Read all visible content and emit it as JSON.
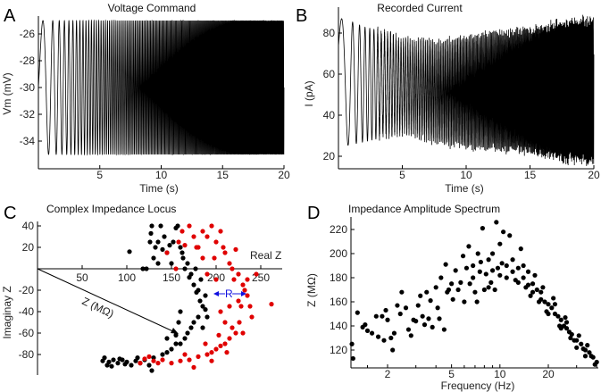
{
  "panels": {
    "A": "A",
    "B": "B",
    "C": "C",
    "D": "D"
  },
  "chart_data": [
    {
      "panel": "A",
      "type": "line",
      "title": "Voltage Command",
      "xlabel": "Time (s)",
      "ylabel": "Vm (mV)",
      "xlim": [
        0,
        20
      ],
      "ylim": [
        -36.1,
        -24.9
      ],
      "xticks": [
        5,
        10,
        15,
        20
      ],
      "yticks": [
        -26,
        -28,
        -30,
        -32,
        -34
      ],
      "waveform": {
        "kind": "chirp",
        "min": -35,
        "max": -25,
        "start_freq_hz": 0.5,
        "end_freq_hz": 20
      },
      "color": "#000000"
    },
    {
      "panel": "B",
      "type": "line",
      "title": "Recorded Current",
      "xlabel": "Time (s)",
      "ylabel": "I (pA)",
      "xlim": [
        0,
        20
      ],
      "ylim": [
        14,
        91
      ],
      "xticks": [
        5,
        10,
        15,
        20
      ],
      "yticks": [
        20,
        40,
        60,
        80
      ],
      "envelope": {
        "t": [
          0,
          0.5,
          2,
          4,
          5,
          8,
          10,
          15,
          18,
          20
        ],
        "upper": [
          87,
          87,
          83,
          80,
          77,
          75,
          78,
          82,
          86,
          87
        ],
        "lower": [
          25,
          25,
          27,
          30,
          32,
          27,
          25,
          22,
          18,
          17
        ]
      },
      "color": "#000000"
    },
    {
      "panel": "C",
      "type": "scatter",
      "title": "Complex Impedance Locus",
      "xlabel": "Real Z",
      "ylabel": "Imaginay Z",
      "xlim": [
        0,
        274
      ],
      "ylim": [
        -99,
        43
      ],
      "xticks": [
        50,
        100,
        150,
        200,
        250
      ],
      "yticks": [
        40,
        20,
        -20,
        -40,
        -60,
        -80
      ],
      "annotations": {
        "vector_label": "Z (MΩ)",
        "resonance_label": "R",
        "resonance_color": "#1010e0"
      },
      "series": [
        {
          "color": "#000000",
          "points": [
            [
              103,
              16
            ],
            [
              118,
              0
            ],
            [
              122,
              0
            ],
            [
              126,
              25
            ],
            [
              128,
              40
            ],
            [
              130,
              10
            ],
            [
              132,
              20
            ],
            [
              135,
              25
            ],
            [
              138,
              40
            ],
            [
              140,
              18
            ],
            [
              142,
              30
            ],
            [
              145,
              15
            ],
            [
              148,
              22
            ],
            [
              150,
              5
            ],
            [
              152,
              25
            ],
            [
              155,
              38
            ],
            [
              157,
              40
            ],
            [
              160,
              20
            ],
            [
              163,
              10
            ],
            [
              165,
              0
            ],
            [
              170,
              -8
            ],
            [
              172,
              -5
            ],
            [
              175,
              -15
            ],
            [
              178,
              -22
            ],
            [
              180,
              -20
            ],
            [
              182,
              -30
            ],
            [
              185,
              -35
            ],
            [
              188,
              -38
            ],
            [
              190,
              -45
            ],
            [
              180,
              -45
            ],
            [
              175,
              -50
            ],
            [
              172,
              -55
            ],
            [
              168,
              -60
            ],
            [
              165,
              -65
            ],
            [
              160,
              -70
            ],
            [
              155,
              -70
            ],
            [
              150,
              -75
            ],
            [
              145,
              -78
            ],
            [
              140,
              -80
            ],
            [
              130,
              -83
            ],
            [
              120,
              -85
            ],
            [
              110,
              -86
            ],
            [
              100,
              -87
            ],
            [
              90,
              -88
            ],
            [
              80,
              -87
            ],
            [
              75,
              -83
            ],
            [
              73,
              -86
            ],
            [
              78,
              -90
            ],
            [
              85,
              -85
            ],
            [
              95,
              -85
            ],
            [
              105,
              -90
            ],
            [
              115,
              -88
            ],
            [
              125,
              -90
            ],
            [
              128,
              -95
            ],
            [
              160,
              -40
            ],
            [
              158,
              -50
            ],
            [
              185,
              -55
            ],
            [
              188,
              -25
            ],
            [
              183,
              -10
            ],
            [
              177,
              0
            ],
            [
              168,
              5
            ],
            [
              162,
              15
            ],
            [
              135,
              5
            ],
            [
              127,
              33
            ],
            [
              145,
              -65
            ],
            [
              155,
              -62
            ],
            [
              92,
              -84
            ],
            [
              83,
              -91
            ],
            [
              98,
              -89
            ],
            [
              112,
              -83
            ]
          ]
        },
        {
          "color": "#e00000",
          "points": [
            [
              145,
              15
            ],
            [
              155,
              0
            ],
            [
              158,
              25
            ],
            [
              162,
              35
            ],
            [
              165,
              22
            ],
            [
              170,
              40
            ],
            [
              175,
              30
            ],
            [
              180,
              20
            ],
            [
              185,
              10
            ],
            [
              190,
              30
            ],
            [
              195,
              40
            ],
            [
              200,
              25
            ],
            [
              205,
              35
            ],
            [
              208,
              20
            ],
            [
              210,
              15
            ],
            [
              215,
              5
            ],
            [
              218,
              0
            ],
            [
              220,
              -10
            ],
            [
              222,
              18
            ],
            [
              225,
              -5
            ],
            [
              230,
              -15
            ],
            [
              235,
              -25
            ],
            [
              238,
              -35
            ],
            [
              240,
              -45
            ],
            [
              262,
              -33
            ],
            [
              226,
              -50
            ],
            [
              222,
              -60
            ],
            [
              215,
              -65
            ],
            [
              210,
              -70
            ],
            [
              205,
              -72
            ],
            [
              200,
              -75
            ],
            [
              195,
              -78
            ],
            [
              190,
              -80
            ],
            [
              180,
              -82
            ],
            [
              170,
              -85
            ],
            [
              160,
              -86
            ],
            [
              150,
              -88
            ],
            [
              140,
              -85
            ],
            [
              130,
              -86
            ],
            [
              120,
              -84
            ],
            [
              115,
              -88
            ],
            [
              175,
              -92
            ],
            [
              195,
              -86
            ],
            [
              212,
              -78
            ],
            [
              218,
              -55
            ],
            [
              228,
              -35
            ],
            [
              205,
              -40
            ],
            [
              200,
              -10
            ],
            [
              198,
              10
            ],
            [
              190,
              -5
            ],
            [
              178,
              20
            ],
            [
              185,
              35
            ],
            [
              230,
              -60
            ],
            [
              225,
              -30
            ],
            [
              235,
              -10
            ],
            [
              210,
              -50
            ],
            [
              215,
              -35
            ],
            [
              188,
              -70
            ],
            [
              165,
              -80
            ],
            [
              135,
              -88
            ],
            [
              125,
              -82
            ],
            [
              203,
              -62
            ],
            [
              232,
              -20
            ],
            [
              245,
              -5
            ]
          ]
        }
      ]
    },
    {
      "panel": "D",
      "type": "scatter",
      "title": "Impedance Amplitude Spectrum",
      "xlabel": "Frequency (Hz)",
      "ylabel": "Z (MΩ)",
      "xscale": "log",
      "xlim": [
        1.18,
        41
      ],
      "ylim": [
        105,
        229
      ],
      "xticks": [
        2,
        5,
        10,
        20
      ],
      "yticks": [
        120,
        140,
        160,
        180,
        200,
        220
      ],
      "color": "#000000",
      "points": [
        [
          1.2,
          125
        ],
        [
          1.22,
          113
        ],
        [
          1.3,
          151
        ],
        [
          1.4,
          139
        ],
        [
          1.45,
          141
        ],
        [
          1.5,
          136
        ],
        [
          1.6,
          134
        ],
        [
          1.7,
          148
        ],
        [
          1.75,
          131
        ],
        [
          1.85,
          148
        ],
        [
          1.9,
          128
        ],
        [
          1.95,
          153
        ],
        [
          2.0,
          145
        ],
        [
          2.1,
          130
        ],
        [
          2.15,
          120
        ],
        [
          2.2,
          134
        ],
        [
          2.3,
          157
        ],
        [
          2.4,
          150
        ],
        [
          2.45,
          168
        ],
        [
          2.6,
          155
        ],
        [
          2.7,
          137
        ],
        [
          2.8,
          132
        ],
        [
          2.9,
          145
        ],
        [
          3.0,
          144
        ],
        [
          3.1,
          157
        ],
        [
          3.2,
          165
        ],
        [
          3.3,
          148
        ],
        [
          3.4,
          141
        ],
        [
          3.5,
          168
        ],
        [
          3.6,
          146
        ],
        [
          3.7,
          161
        ],
        [
          3.8,
          139
        ],
        [
          4.0,
          172
        ],
        [
          4.1,
          155
        ],
        [
          4.2,
          146
        ],
        [
          4.3,
          180
        ],
        [
          4.5,
          137
        ],
        [
          4.6,
          191
        ],
        [
          4.7,
          168
        ],
        [
          4.8,
          170
        ],
        [
          5.0,
          175
        ],
        [
          5.1,
          162
        ],
        [
          5.3,
          186
        ],
        [
          5.5,
          170
        ],
        [
          5.7,
          176
        ],
        [
          5.9,
          198
        ],
        [
          6.0,
          160
        ],
        [
          6.2,
          188
        ],
        [
          6.4,
          206
        ],
        [
          6.5,
          175
        ],
        [
          6.8,
          190
        ],
        [
          7.0,
          168
        ],
        [
          7.2,
          160
        ],
        [
          7.3,
          200
        ],
        [
          7.6,
          193
        ],
        [
          7.8,
          221
        ],
        [
          8.0,
          170
        ],
        [
          8.2,
          183
        ],
        [
          8.5,
          195
        ],
        [
          8.8,
          176
        ],
        [
          9.0,
          200
        ],
        [
          9.3,
          170
        ],
        [
          9.5,
          226
        ],
        [
          9.7,
          188
        ],
        [
          10,
          208
        ],
        [
          10.3,
          192
        ],
        [
          10.5,
          218
        ],
        [
          11,
          190
        ],
        [
          11.5,
          215
        ],
        [
          12,
          185
        ],
        [
          12.5,
          178
        ],
        [
          13,
          188
        ],
        [
          13.5,
          204
        ],
        [
          14,
          180
        ],
        [
          14.5,
          172
        ],
        [
          15,
          185
        ],
        [
          15.5,
          165
        ],
        [
          16,
          175
        ],
        [
          16.5,
          182
        ],
        [
          17,
          170
        ],
        [
          17.5,
          160
        ],
        [
          18,
          162
        ],
        [
          18.5,
          172
        ],
        [
          19,
          160
        ],
        [
          19.5,
          152
        ],
        [
          20,
          158
        ],
        [
          21,
          155
        ],
        [
          21.5,
          163
        ],
        [
          22,
          150
        ],
        [
          23,
          148
        ],
        [
          23.5,
          140
        ],
        [
          24,
          145
        ],
        [
          25,
          140
        ],
        [
          25.5,
          147
        ],
        [
          26,
          138
        ],
        [
          27,
          135
        ],
        [
          27.5,
          130
        ],
        [
          28,
          133
        ],
        [
          29,
          128
        ],
        [
          30,
          128
        ],
        [
          31,
          132
        ],
        [
          32,
          125
        ],
        [
          33,
          121
        ],
        [
          34,
          120
        ],
        [
          35,
          124
        ],
        [
          36,
          118
        ],
        [
          37,
          115
        ],
        [
          38,
          114
        ],
        [
          39,
          108
        ],
        [
          40,
          110
        ],
        [
          12,
          195
        ],
        [
          13,
          176
        ],
        [
          14,
          190
        ],
        [
          15,
          174
        ],
        [
          16,
          168
        ],
        [
          18,
          168
        ],
        [
          20,
          150
        ],
        [
          22,
          158
        ],
        [
          24,
          138
        ],
        [
          26,
          143
        ],
        [
          30,
          122
        ],
        [
          34,
          115
        ],
        [
          11,
          180
        ],
        [
          10,
          182
        ],
        [
          9,
          186
        ],
        [
          8.5,
          172
        ],
        [
          7.5,
          185
        ],
        [
          6.8,
          180
        ]
      ]
    }
  ]
}
